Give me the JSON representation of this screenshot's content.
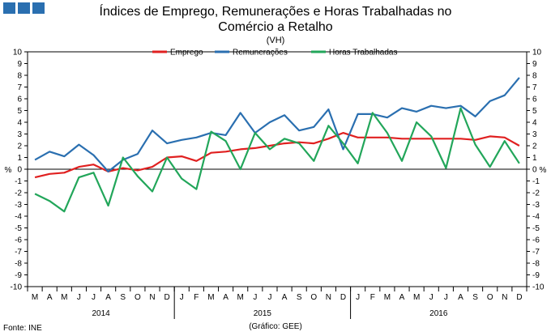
{
  "header": {
    "title_line1": "Índices de Emprego, Remunerações e Horas Trabalhadas no",
    "title_line2": "Comércio a Retalho",
    "subtitle": "(VH)"
  },
  "footer": {
    "source": "Fonte: INE",
    "credit": "(Gráfico: GEE)"
  },
  "chart_data": {
    "type": "line",
    "ylabel_left": "%",
    "ylabel_right": "%",
    "ylim": [
      -10,
      10
    ],
    "yticks": [
      -10,
      -9,
      -8,
      -7,
      -6,
      -5,
      -4,
      -3,
      -2,
      -1,
      0,
      1,
      2,
      3,
      4,
      5,
      6,
      7,
      8,
      9,
      10
    ],
    "x_months": [
      "M",
      "A",
      "M",
      "J",
      "J",
      "A",
      "S",
      "O",
      "N",
      "D",
      "J",
      "F",
      "M",
      "A",
      "M",
      "J",
      "J",
      "A",
      "S",
      "O",
      "N",
      "D",
      "J",
      "F",
      "M",
      "A",
      "M",
      "J",
      "J",
      "A",
      "S",
      "O",
      "N",
      "D"
    ],
    "year_groups": [
      {
        "label": "2014",
        "count": 10
      },
      {
        "label": "2015",
        "count": 12
      },
      {
        "label": "2016",
        "count": 12
      }
    ],
    "legend": "top",
    "series": [
      {
        "name": "Emprego",
        "color": "#e02020",
        "values": [
          -0.7,
          -0.4,
          -0.3,
          0.2,
          0.4,
          -0.2,
          0.1,
          -0.1,
          0.2,
          1.0,
          1.1,
          0.7,
          1.4,
          1.5,
          1.7,
          1.8,
          2.0,
          2.2,
          2.3,
          2.2,
          2.6,
          3.1,
          2.7,
          2.7,
          2.7,
          2.6,
          2.6,
          2.6,
          2.6,
          2.6,
          2.5,
          2.8,
          2.7,
          2.0
        ]
      },
      {
        "name": "Remunerações",
        "color": "#2a6fb0",
        "values": [
          0.8,
          1.5,
          1.1,
          2.1,
          1.2,
          -0.2,
          0.8,
          1.3,
          3.3,
          2.2,
          2.5,
          2.7,
          3.1,
          2.9,
          4.8,
          3.1,
          4.0,
          4.6,
          3.3,
          3.6,
          5.1,
          1.7,
          4.7,
          4.7,
          4.4,
          5.2,
          4.9,
          5.4,
          5.2,
          5.4,
          4.5,
          5.8,
          6.3,
          7.8
        ]
      },
      {
        "name": "Horas Trabalhadas",
        "color": "#22a65a",
        "values": [
          -2.1,
          -2.7,
          -3.6,
          -0.7,
          -0.3,
          -3.1,
          1.0,
          -0.6,
          -1.9,
          1.0,
          -0.8,
          -1.7,
          3.2,
          2.4,
          0.0,
          3.1,
          1.7,
          2.6,
          2.2,
          0.7,
          3.7,
          2.2,
          0.5,
          4.8,
          3.1,
          0.7,
          4.0,
          2.8,
          0.1,
          5.2,
          2.1,
          0.2,
          2.4,
          0.5
        ]
      }
    ]
  }
}
